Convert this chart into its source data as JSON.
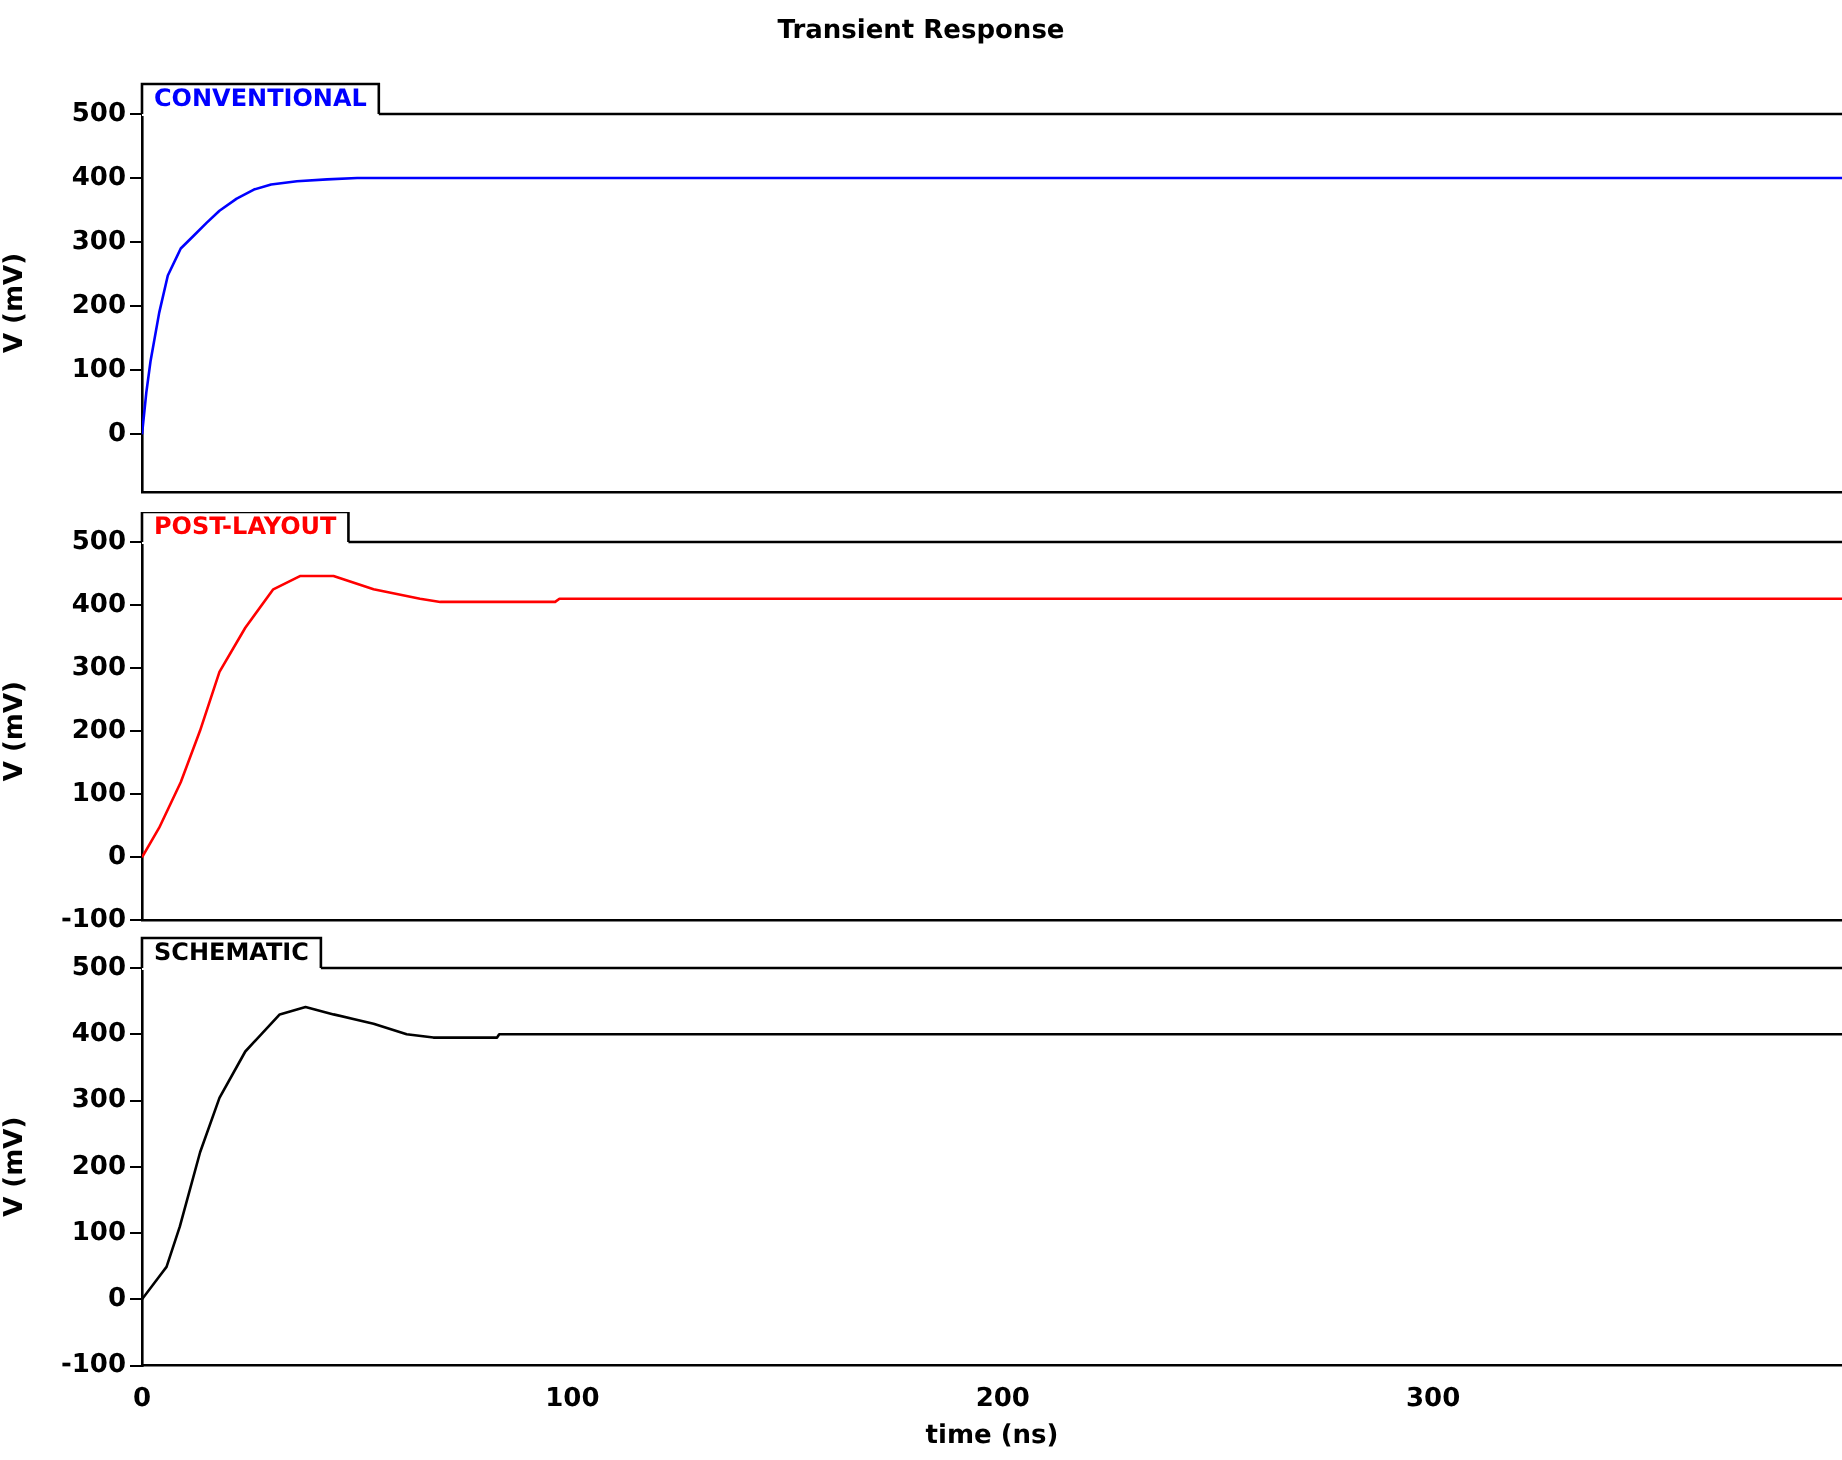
{
  "chart_data": [
    {
      "type": "line",
      "title": "Transient Response",
      "ylabel": "V (mV)",
      "xlim": [
        0,
        395
      ],
      "xticks": [
        0,
        100,
        200,
        300
      ],
      "ylim": [
        -90,
        500
      ],
      "yticks": [
        0,
        100,
        200,
        300,
        400,
        500
      ],
      "tick_labels": "y",
      "series": [
        {
          "name": "CONVENTIONAL",
          "color": "#0000ff",
          "x": [
            0,
            1,
            2,
            4,
            6,
            9,
            12,
            15,
            18,
            22,
            26,
            30,
            36,
            43,
            50,
            395
          ],
          "values": [
            0,
            65,
            115,
            190,
            248,
            290,
            310,
            330,
            349,
            368,
            382,
            390,
            395,
            398,
            400,
            400
          ]
        }
      ]
    },
    {
      "type": "line",
      "ylabel": "V (mV)",
      "xlim": [
        0,
        395
      ],
      "xticks": [
        0,
        100,
        200,
        300
      ],
      "ylim": [
        -100,
        500
      ],
      "yticks": [
        -100,
        0,
        100,
        200,
        300,
        400,
        500
      ],
      "tick_labels": "y",
      "series": [
        {
          "name": "POST-LAYOUT",
          "color": "#ff0000",
          "x": [
            0,
            4,
            9,
            13.5,
            18,
            24,
            30.5,
            36.7,
            44.5,
            53.8,
            64.6,
            69.3,
            96,
            97,
            395
          ],
          "values": [
            0,
            47,
            119,
            201,
            294,
            364,
            425,
            446,
            446,
            425,
            410,
            405,
            405,
            410,
            410
          ]
        }
      ]
    },
    {
      "type": "line",
      "ylabel": "V (mV)",
      "xlabel": "time (ns)",
      "xlim": [
        0,
        395
      ],
      "xticks": [
        0,
        100,
        200,
        300
      ],
      "ylim": [
        -100,
        500
      ],
      "yticks": [
        -100,
        0,
        100,
        200,
        300,
        400,
        500
      ],
      "series": [
        {
          "name": "SCHEMATIC",
          "color": "#000000",
          "x": [
            0,
            5.7,
            8.8,
            13.5,
            18,
            24,
            32,
            38,
            44.5,
            53.8,
            61.5,
            67.7,
            82.5,
            83,
            395
          ],
          "values": [
            0,
            49,
            110,
            222,
            304,
            374,
            430,
            441,
            430,
            416,
            400,
            395,
            395,
            400,
            400
          ]
        }
      ]
    }
  ]
}
